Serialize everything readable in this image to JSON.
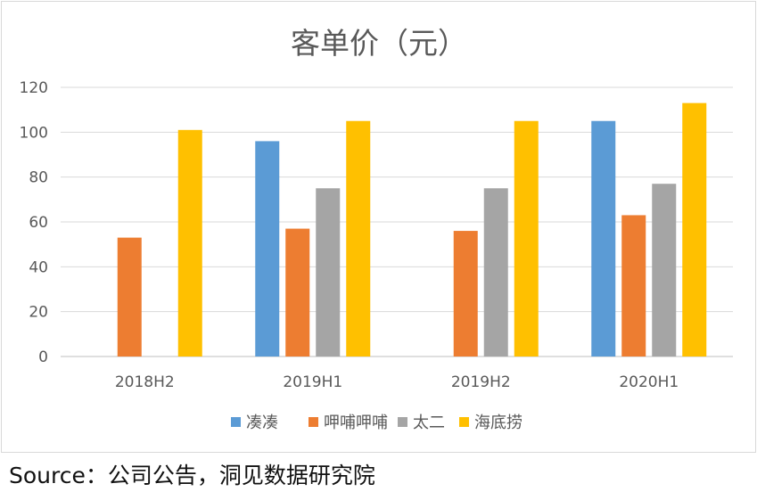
{
  "chart_data": {
    "type": "bar",
    "title": "客单价（元）",
    "categories": [
      "2018H2",
      "2019H1",
      "2019H2",
      "2020H1"
    ],
    "series": [
      {
        "name": "凑凑",
        "color": "#5b9bd5",
        "values": [
          null,
          96,
          null,
          105
        ]
      },
      {
        "name": "呷哺呷哺",
        "color": "#ed7d31",
        "values": [
          53,
          57,
          56,
          63
        ]
      },
      {
        "name": "太二",
        "color": "#a5a5a5",
        "values": [
          null,
          75,
          75,
          77
        ]
      },
      {
        "name": "海底捞",
        "color": "#ffc000",
        "values": [
          101,
          105,
          105,
          113
        ]
      }
    ],
    "ylim": [
      0,
      120
    ],
    "yticks": [
      0,
      20,
      40,
      60,
      80,
      100,
      120
    ],
    "grid": true,
    "legend": "bottom"
  },
  "footer": {
    "source": "Source：公司公告，洞见数据研究院"
  }
}
